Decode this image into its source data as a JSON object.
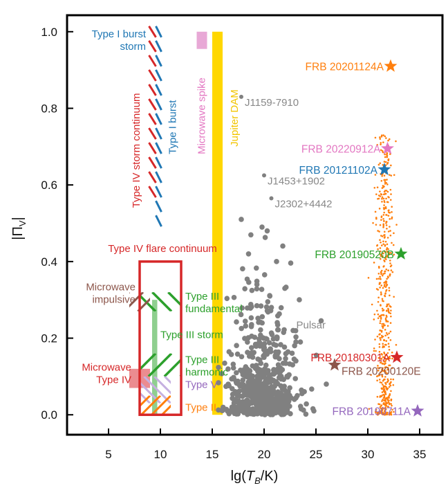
{
  "chart_data": {
    "type": "scatter",
    "xlabel_pre": "lg(",
    "xlabel_var": "T",
    "xlabel_sub": "B",
    "xlabel_post": "/K)",
    "ylabel": "|Π",
    "ylabel_sub": "V",
    "ylabel_post": "|",
    "xlim": [
      1,
      37.2
    ],
    "ylim": [
      -0.052,
      1.043
    ],
    "xticks": [
      5,
      10,
      15,
      20,
      25,
      30,
      35
    ],
    "xtick_labels": [
      "5",
      "10",
      "15",
      "20",
      "25",
      "30",
      "35"
    ],
    "yticks": [
      0,
      0.2,
      0.4,
      0.6,
      0.8,
      1.0
    ],
    "ytick_labels": [
      "0.0",
      "0.2",
      "0.4",
      "0.6",
      "0.8",
      "1.0"
    ],
    "regions": [
      {
        "name": "Type I burst storm",
        "label": "Type I burst\nstorm",
        "x": [
          8.8,
          10.2
        ],
        "y": [
          0.55,
          1.0
        ],
        "color": "#d62728",
        "color2": "#1f77b4",
        "style": "hatch"
      },
      {
        "name": "Type IV storm continuum",
        "label": "Type IV storm continuum",
        "x": [
          8.8,
          10.2
        ],
        "y": [
          0.55,
          1.0
        ],
        "color": "#d62728"
      },
      {
        "name": "Type I burst",
        "label": "Type I burst",
        "x": [
          9.6,
          10.4
        ],
        "y": [
          0.5,
          1.0
        ],
        "color": "#1f77b4"
      },
      {
        "name": "Microwave spike",
        "label": "Microwave spike",
        "x": [
          13.5,
          14.5
        ],
        "y": [
          0.955,
          1.0
        ],
        "color": "#e8a8d6"
      },
      {
        "name": "Jupiter DAM",
        "label": "Jupiter DAM",
        "x": [
          15,
          16
        ],
        "y": [
          0,
          1.0
        ],
        "color": "#ffd700"
      },
      {
        "name": "Type IV flare continuum",
        "label": "Type IV flare continuum",
        "x": [
          8,
          12
        ],
        "y": [
          0,
          0.4
        ],
        "color": "#d62728"
      },
      {
        "name": "Microwave impulsive",
        "label": "Microwave\nimpulsive",
        "x": [
          7,
          9
        ],
        "y": [
          0.27,
          0.32
        ],
        "color": "#8c564b"
      },
      {
        "name": "Type III fundamental",
        "label": "Type III\nfundamental",
        "x": [
          8,
          12
        ],
        "y": [
          0.27,
          0.32
        ],
        "color": "#2ca02c"
      },
      {
        "name": "Type III storm",
        "label": "Type III storm",
        "x": [
          9.2,
          9.7
        ],
        "y": [
          0,
          0.3
        ],
        "color": "#8fcf8f"
      },
      {
        "name": "Type III harmonic",
        "label": "Type III\nharmonic",
        "x": [
          8,
          12
        ],
        "y": [
          0.1,
          0.16
        ],
        "color": "#2ca02c"
      },
      {
        "name": "Microwave Type IV",
        "label": "Microwave\nType IV",
        "x": [
          7,
          9
        ],
        "y": [
          0.07,
          0.12
        ],
        "color": "#e8787c"
      },
      {
        "name": "Type V",
        "label": "Type V",
        "x": [
          8,
          11
        ],
        "y": [
          0.03,
          0.1
        ],
        "color": "#c5b0e0"
      },
      {
        "name": "Type II",
        "label": "Type II",
        "x": [
          8,
          11
        ],
        "y": [
          0,
          0.05
        ],
        "color": "#ff7f0e"
      }
    ],
    "pulsars": {
      "name": "Pulsar",
      "color": "#808080",
      "cloud": {
        "n": 650,
        "x_mean": 19.8,
        "x_sd": 1.6,
        "y_scale": 0.09,
        "y_max": 0.5
      },
      "named": [
        {
          "name": "J1159-7910",
          "x": 17.8,
          "y": 0.83
        },
        {
          "name": "J1453+1902",
          "x": 20.0,
          "y": 0.625
        },
        {
          "name": "J2302+4442",
          "x": 20.7,
          "y": 0.565
        }
      ],
      "extra": [
        [
          17.8,
          0.51
        ],
        [
          19.8,
          0.49
        ],
        [
          20.3,
          0.48
        ],
        [
          18.5,
          0.42
        ],
        [
          21.2,
          0.4
        ],
        [
          22.0,
          0.33
        ],
        [
          22.8,
          0.22
        ],
        [
          23.5,
          0.19
        ],
        [
          24.8,
          0.01
        ],
        [
          26.0,
          0.08
        ],
        [
          23.2,
          0.05
        ],
        [
          16.9,
          0.02
        ]
      ]
    },
    "frb_cloud": {
      "name": "FRB 20201124A bursts",
      "color": "#ff7f0e",
      "n": 600,
      "x_mean": 31.6,
      "x_sd": 0.45,
      "y_max": 0.73
    },
    "frbs": [
      {
        "name": "FRB 20201124A",
        "x": 32.2,
        "y": 0.91,
        "color": "#ff7f0e",
        "anchor": "end"
      },
      {
        "name": "FRB 20220912A",
        "x": 31.9,
        "y": 0.695,
        "color": "#e377c2",
        "anchor": "end"
      },
      {
        "name": "FRB 20121102A",
        "x": 31.6,
        "y": 0.64,
        "color": "#1f77b4",
        "anchor": "end"
      },
      {
        "name": "FRB 20190520B",
        "x": 33.2,
        "y": 0.42,
        "color": "#2ca02c",
        "anchor": "end"
      },
      {
        "name": "FRB 20180301A",
        "x": 32.8,
        "y": 0.15,
        "color": "#d62728",
        "anchor": "end"
      },
      {
        "name": "FRB 20200120E",
        "x": 26.8,
        "y": 0.13,
        "color": "#8c564b",
        "anchor": "start"
      },
      {
        "name": "FRB 20190711A",
        "x": 34.8,
        "y": 0.01,
        "color": "#9467bd",
        "anchor": "end"
      }
    ],
    "pulsar_label": "Pulsar"
  }
}
